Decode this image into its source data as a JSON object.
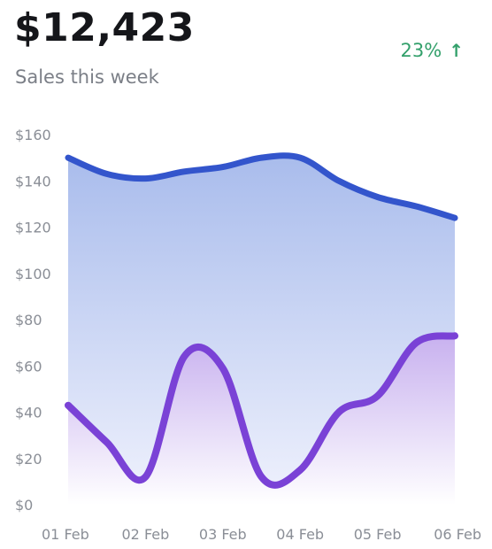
{
  "header": {
    "total": "$12,423",
    "subtitle": "Sales this week",
    "change": "23%",
    "change_icon": "arrow-up-icon",
    "change_color": "#33a06b"
  },
  "chart_data": {
    "type": "area",
    "categories": [
      "01 Feb",
      "02 Feb",
      "03 Feb",
      "04 Feb",
      "05 Feb",
      "06 Feb"
    ],
    "y_ticks": [
      "$0",
      "$20",
      "$40",
      "$60",
      "$80",
      "$100",
      "$120",
      "$140",
      "$160"
    ],
    "y_tick_values": [
      0,
      20,
      40,
      60,
      80,
      100,
      120,
      140,
      160
    ],
    "ylim": [
      0,
      160
    ],
    "grid": false,
    "series": [
      {
        "color": "#3355cc",
        "fill_top": "#a9bcec",
        "fill_bottom": "#f0f2fd",
        "x": [
          0,
          0.5,
          1,
          1.5,
          2,
          2.5,
          3,
          3.5,
          4,
          4.5,
          5
        ],
        "values": [
          150,
          143,
          141,
          144,
          146,
          150,
          150,
          140,
          133,
          129,
          124
        ]
      },
      {
        "color": "#7a42d6",
        "fill_top": "#c8b1ef",
        "fill_bottom": "#ffffff",
        "x": [
          0,
          0.5,
          1,
          1.5,
          2,
          2.5,
          3,
          3.5,
          4,
          4.5,
          5
        ],
        "values": [
          43,
          27,
          12,
          64,
          59,
          12,
          15,
          40,
          47,
          70,
          73
        ]
      }
    ]
  }
}
